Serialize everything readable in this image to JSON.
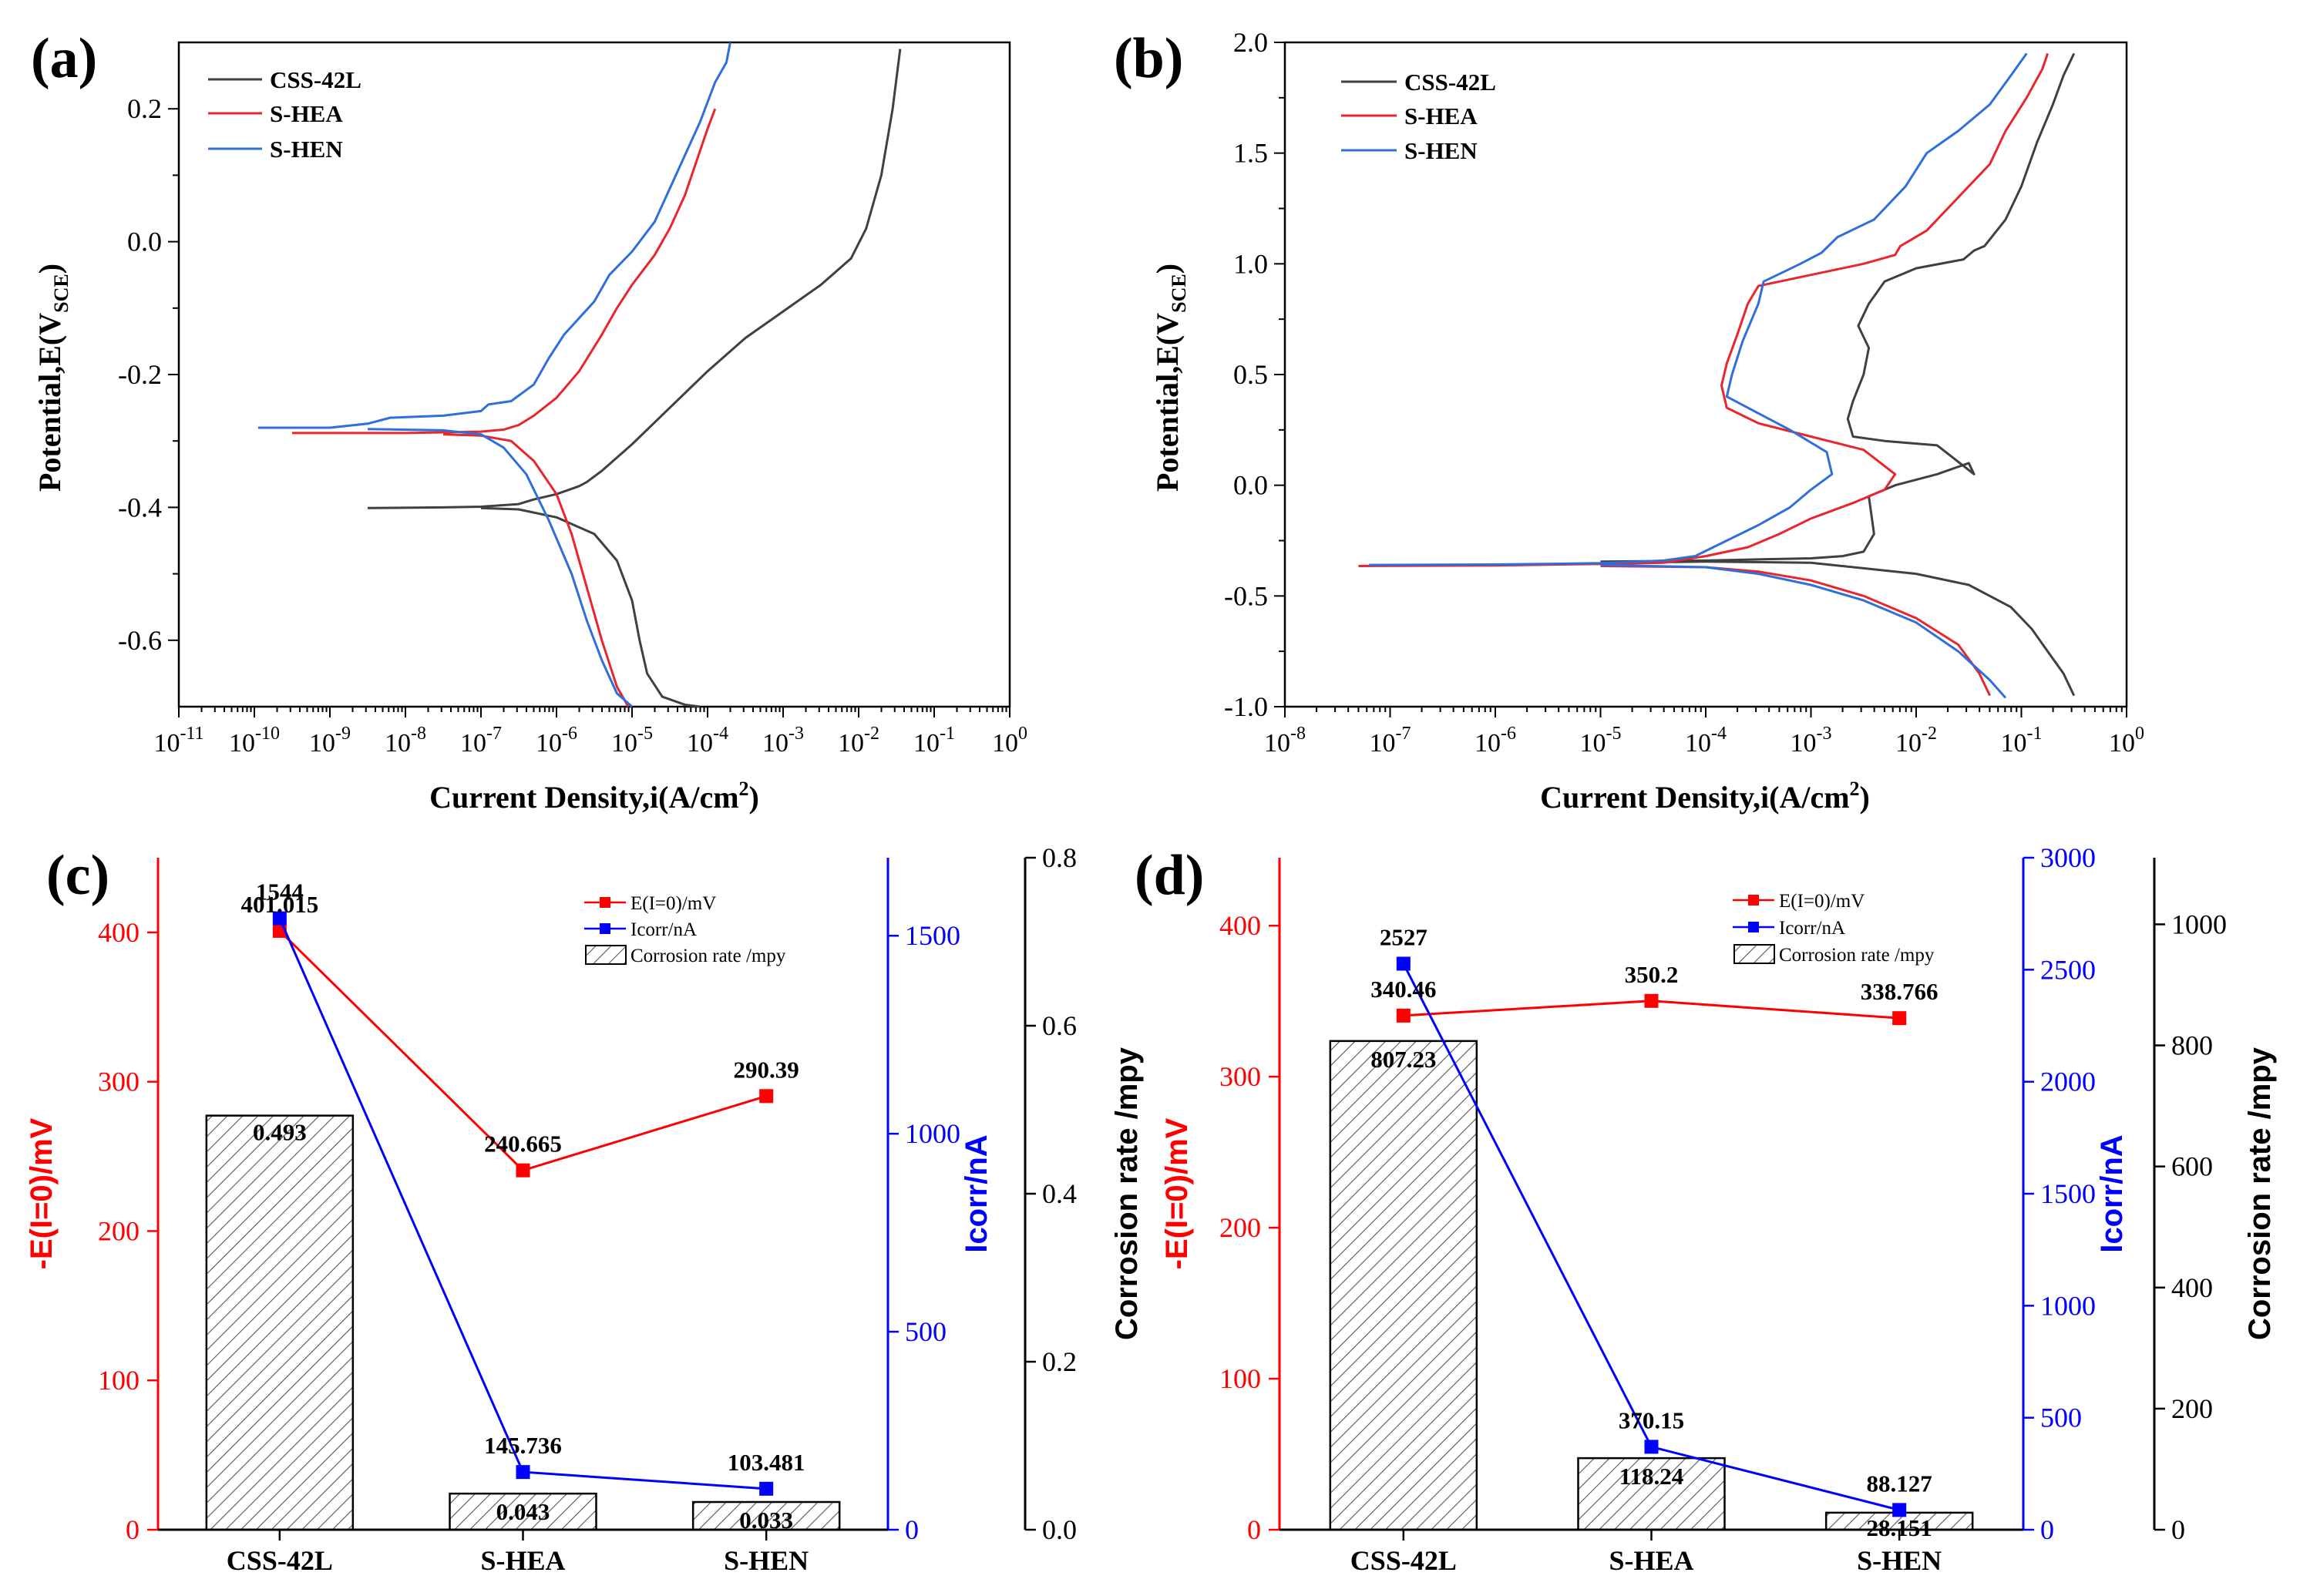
{
  "panels_letters": {
    "a": "(a)",
    "b": "(b)",
    "c": "(c)",
    "d": "(d)"
  },
  "colors": {
    "css": "#404040",
    "shea": "#e8262c",
    "shen": "#2f6fdc",
    "red_axis": "#ff0000",
    "blue_axis": "#0000ff"
  },
  "chart_data": [
    {
      "id": "a",
      "type": "line",
      "xscale": "log",
      "xlabel_main": "Current Density,i(A/cm",
      "xlabel_sup": "2",
      "xlabel_end": ")",
      "ylabel_main": "Potential,E(V",
      "ylabel_sub": "SCE",
      "ylabel_end": ")",
      "xlim_exp": [
        -11,
        0
      ],
      "ylim": [
        -0.7,
        0.3
      ],
      "xticks_exp": [
        -11,
        -10,
        -9,
        -8,
        -7,
        -6,
        -5,
        -4,
        -3,
        -2,
        -1,
        0
      ],
      "yticks": [
        -0.6,
        -0.4,
        -0.2,
        0.0,
        0.2
      ],
      "ytick_labels": [
        "-0.6",
        "-0.4",
        "-0.2",
        "0.0",
        "0.2"
      ],
      "legend": [
        "CSS-42L",
        "S-HEA",
        "S-HEN"
      ],
      "series": [
        {
          "name": "CSS-42L",
          "points_logi_E": [
            [
              -8.5,
              -0.401
            ],
            [
              -7.5,
              -0.4
            ],
            [
              -7,
              -0.399
            ],
            [
              -6.5,
              -0.395
            ],
            [
              -6.3,
              -0.388
            ],
            [
              -6.0,
              -0.38
            ],
            [
              -5.8,
              -0.372
            ],
            [
              -5.7,
              -0.368
            ],
            [
              -5.6,
              -0.362
            ],
            [
              -5.4,
              -0.345
            ],
            [
              -5.0,
              -0.305
            ],
            [
              -4.5,
              -0.25
            ],
            [
              -4.0,
              -0.195
            ],
            [
              -3.5,
              -0.145
            ],
            [
              -3.0,
              -0.105
            ],
            [
              -2.5,
              -0.065
            ],
            [
              -2.1,
              -0.025
            ],
            [
              -1.9,
              0.02
            ],
            [
              -1.7,
              0.1
            ],
            [
              -1.55,
              0.2
            ],
            [
              -1.45,
              0.29
            ],
            null,
            [
              -7,
              -0.401
            ],
            [
              -6.5,
              -0.403
            ],
            [
              -6,
              -0.415
            ],
            [
              -5.5,
              -0.44
            ],
            [
              -5.2,
              -0.48
            ],
            [
              -5.0,
              -0.54
            ],
            [
              -4.9,
              -0.6
            ],
            [
              -4.8,
              -0.65
            ],
            [
              -4.6,
              -0.685
            ],
            [
              -4.3,
              -0.697
            ],
            [
              -4.1,
              -0.7
            ]
          ]
        },
        {
          "name": "S-HEA",
          "points_logi_E": [
            [
              -9.5,
              -0.288
            ],
            [
              -8,
              -0.288
            ],
            [
              -7,
              -0.286
            ],
            [
              -6.7,
              -0.283
            ],
            [
              -6.5,
              -0.276
            ],
            [
              -6.3,
              -0.262
            ],
            [
              -6.0,
              -0.235
            ],
            [
              -5.7,
              -0.195
            ],
            [
              -5.4,
              -0.14
            ],
            [
              -5.2,
              -0.1
            ],
            [
              -5.0,
              -0.065
            ],
            [
              -4.7,
              -0.02
            ],
            [
              -4.5,
              0.02
            ],
            [
              -4.3,
              0.07
            ],
            [
              -4.15,
              0.12
            ],
            [
              -4.0,
              0.17
            ],
            [
              -3.9,
              0.2
            ],
            null,
            [
              -7.5,
              -0.29
            ],
            [
              -7,
              -0.292
            ],
            [
              -6.6,
              -0.3
            ],
            [
              -6.3,
              -0.33
            ],
            [
              -6.0,
              -0.38
            ],
            [
              -5.8,
              -0.44
            ],
            [
              -5.6,
              -0.52
            ],
            [
              -5.4,
              -0.6
            ],
            [
              -5.2,
              -0.67
            ],
            [
              -5.05,
              -0.7
            ]
          ]
        },
        {
          "name": "S-HEN",
          "points_logi_E": [
            [
              -9.95,
              -0.28
            ],
            [
              -9,
              -0.28
            ],
            [
              -8.5,
              -0.274
            ],
            [
              -8.2,
              -0.265
            ],
            [
              -7.5,
              -0.262
            ],
            [
              -7,
              -0.255
            ],
            [
              -6.9,
              -0.245
            ],
            [
              -6.6,
              -0.24
            ],
            [
              -6.3,
              -0.215
            ],
            [
              -6.1,
              -0.175
            ],
            [
              -5.9,
              -0.14
            ],
            [
              -5.5,
              -0.09
            ],
            [
              -5.3,
              -0.05
            ],
            [
              -5.0,
              -0.015
            ],
            [
              -4.7,
              0.03
            ],
            [
              -4.5,
              0.08
            ],
            [
              -4.3,
              0.13
            ],
            [
              -4.1,
              0.18
            ],
            [
              -3.9,
              0.24
            ],
            [
              -3.75,
              0.27
            ],
            [
              -3.7,
              0.3
            ],
            null,
            [
              -8.5,
              -0.282
            ],
            [
              -7.5,
              -0.284
            ],
            [
              -7,
              -0.29
            ],
            [
              -6.7,
              -0.31
            ],
            [
              -6.4,
              -0.35
            ],
            [
              -6.1,
              -0.42
            ],
            [
              -5.8,
              -0.5
            ],
            [
              -5.6,
              -0.57
            ],
            [
              -5.4,
              -0.63
            ],
            [
              -5.2,
              -0.68
            ],
            [
              -5.0,
              -0.7
            ]
          ]
        }
      ]
    },
    {
      "id": "b",
      "type": "line",
      "xscale": "log",
      "xlabel_main": "Current Density,i(A/cm",
      "xlabel_sup": "2",
      "xlabel_end": ")",
      "ylabel_main": "Potential,E(V",
      "ylabel_sub": "SCE",
      "ylabel_end": ")",
      "xlim_exp": [
        -8,
        0
      ],
      "ylim": [
        -1.0,
        2.0
      ],
      "xticks_exp": [
        -8,
        -7,
        -6,
        -5,
        -4,
        -3,
        -2,
        -1,
        0
      ],
      "yticks": [
        -1.0,
        -0.5,
        0.0,
        0.5,
        1.0,
        1.5,
        2.0
      ],
      "ytick_labels": [
        "-1.0",
        "-0.5",
        "0.0",
        "0.5",
        "1.0",
        "1.5",
        "2.0"
      ],
      "legend": [
        "CSS-42L",
        "S-HEA",
        "S-HEN"
      ],
      "series": [
        {
          "name": "CSS-42L",
          "points_logi_E": [
            [
              -5,
              -0.345
            ],
            [
              -4,
              -0.34
            ],
            [
              -3.5,
              -0.335
            ],
            [
              -3,
              -0.33
            ],
            [
              -2.7,
              -0.32
            ],
            [
              -2.5,
              -0.3
            ],
            [
              -2.4,
              -0.22
            ],
            [
              -2.45,
              -0.05
            ],
            [
              -2.2,
              0.0
            ],
            [
              -1.8,
              0.05
            ],
            [
              -1.5,
              0.1
            ],
            [
              -1.45,
              0.05
            ],
            [
              -1.8,
              0.18
            ],
            [
              -2.3,
              0.2
            ],
            [
              -2.6,
              0.22
            ],
            [
              -2.65,
              0.3
            ],
            [
              -2.6,
              0.38
            ],
            [
              -2.5,
              0.5
            ],
            [
              -2.45,
              0.62
            ],
            [
              -2.55,
              0.72
            ],
            [
              -2.45,
              0.82
            ],
            [
              -2.3,
              0.92
            ],
            [
              -2.0,
              0.98
            ],
            [
              -1.55,
              1.02
            ],
            [
              -1.45,
              1.06
            ],
            [
              -1.35,
              1.08
            ],
            [
              -1.15,
              1.2
            ],
            [
              -1.0,
              1.35
            ],
            [
              -0.85,
              1.55
            ],
            [
              -0.7,
              1.72
            ],
            [
              -0.6,
              1.85
            ],
            [
              -0.5,
              1.95
            ],
            null,
            [
              -5,
              -0.35
            ],
            [
              -4,
              -0.345
            ],
            [
              -3,
              -0.35
            ],
            [
              -2,
              -0.4
            ],
            [
              -1.5,
              -0.45
            ],
            [
              -1.1,
              -0.55
            ],
            [
              -0.9,
              -0.65
            ],
            [
              -0.75,
              -0.75
            ],
            [
              -0.6,
              -0.85
            ],
            [
              -0.5,
              -0.95
            ]
          ]
        },
        {
          "name": "S-HEA",
          "points_logi_E": [
            [
              -7.3,
              -0.365
            ],
            [
              -6,
              -0.362
            ],
            [
              -5,
              -0.355
            ],
            [
              -4.4,
              -0.35
            ],
            [
              -4.0,
              -0.32
            ],
            [
              -3.6,
              -0.28
            ],
            [
              -3.3,
              -0.22
            ],
            [
              -3.0,
              -0.15
            ],
            [
              -2.6,
              -0.08
            ],
            [
              -2.3,
              -0.02
            ],
            [
              -2.2,
              0.05
            ],
            [
              -2.5,
              0.16
            ],
            [
              -3.0,
              0.22
            ],
            [
              -3.5,
              0.28
            ],
            [
              -3.8,
              0.35
            ],
            [
              -3.85,
              0.45
            ],
            [
              -3.8,
              0.55
            ],
            [
              -3.7,
              0.68
            ],
            [
              -3.6,
              0.82
            ],
            [
              -3.5,
              0.9
            ],
            [
              -3.0,
              0.95
            ],
            [
              -2.5,
              1.0
            ],
            [
              -2.2,
              1.04
            ],
            [
              -2.15,
              1.08
            ],
            [
              -1.9,
              1.15
            ],
            [
              -1.6,
              1.3
            ],
            [
              -1.3,
              1.45
            ],
            [
              -1.15,
              1.6
            ],
            [
              -0.95,
              1.75
            ],
            [
              -0.8,
              1.88
            ],
            [
              -0.75,
              1.95
            ],
            null,
            [
              -5,
              -0.365
            ],
            [
              -4,
              -0.37
            ],
            [
              -3.5,
              -0.39
            ],
            [
              -3,
              -0.43
            ],
            [
              -2.5,
              -0.5
            ],
            [
              -2.0,
              -0.6
            ],
            [
              -1.6,
              -0.72
            ],
            [
              -1.4,
              -0.85
            ],
            [
              -1.3,
              -0.95
            ]
          ]
        },
        {
          "name": "S-HEN",
          "points_logi_E": [
            [
              -7.2,
              -0.36
            ],
            [
              -6,
              -0.358
            ],
            [
              -5,
              -0.352
            ],
            [
              -4.4,
              -0.34
            ],
            [
              -4.1,
              -0.32
            ],
            [
              -3.8,
              -0.25
            ],
            [
              -3.5,
              -0.18
            ],
            [
              -3.2,
              -0.1
            ],
            [
              -3.0,
              -0.02
            ],
            [
              -2.8,
              0.05
            ],
            [
              -2.85,
              0.15
            ],
            [
              -3.2,
              0.25
            ],
            [
              -3.6,
              0.35
            ],
            [
              -3.8,
              0.4
            ],
            [
              -3.75,
              0.5
            ],
            [
              -3.65,
              0.65
            ],
            [
              -3.5,
              0.82
            ],
            [
              -3.45,
              0.92
            ],
            [
              -3.1,
              1.0
            ],
            [
              -2.9,
              1.05
            ],
            [
              -2.75,
              1.12
            ],
            [
              -2.4,
              1.2
            ],
            [
              -2.1,
              1.35
            ],
            [
              -1.9,
              1.5
            ],
            [
              -1.6,
              1.6
            ],
            [
              -1.3,
              1.72
            ],
            [
              -1.1,
              1.85
            ],
            [
              -0.95,
              1.95
            ],
            null,
            [
              -5,
              -0.36
            ],
            [
              -4,
              -0.37
            ],
            [
              -3.5,
              -0.4
            ],
            [
              -3,
              -0.45
            ],
            [
              -2.5,
              -0.52
            ],
            [
              -2.0,
              -0.62
            ],
            [
              -1.6,
              -0.75
            ],
            [
              -1.3,
              -0.88
            ],
            [
              -1.15,
              -0.96
            ]
          ]
        }
      ]
    },
    {
      "id": "c",
      "type": "bar+line",
      "categories": [
        "CSS-42L",
        "S-HEA",
        "S-HEN"
      ],
      "left_axis": {
        "label": "-E(I=0)/mV",
        "ylim": [
          0,
          450
        ],
        "ticks": [
          0,
          100,
          200,
          300,
          400
        ]
      },
      "mid_axis": {
        "label": "Icorr/nA",
        "ylim": [
          0,
          1697
        ],
        "ticks": [
          0,
          500,
          1000,
          1500
        ]
      },
      "right_axis": {
        "label": "Corrosion rate /mpy",
        "ylim": [
          0,
          0.8
        ],
        "ticks": [
          "0.0",
          "0.2",
          "0.4",
          "0.6",
          "0.8"
        ]
      },
      "legend": [
        "E(I=0)/mV",
        "Icorr/nA",
        "Corrosion rate /mpy"
      ],
      "corrosion_rate": [
        0.493,
        0.043,
        0.033
      ],
      "corrosion_rate_labels": [
        "0.493",
        "0.043",
        "0.033"
      ],
      "E_I0": [
        401.015,
        240.665,
        290.39
      ],
      "E_I0_labels": [
        "401.015",
        "240.665",
        "290.39"
      ],
      "Icorr": [
        1544,
        145.736,
        103.481
      ],
      "Icorr_labels": [
        "1544",
        "145.736",
        "103.481"
      ]
    },
    {
      "id": "d",
      "type": "bar+line",
      "categories": [
        "CSS-42L",
        "S-HEA",
        "S-HEN"
      ],
      "left_axis": {
        "label": "-E(I=0)/mV",
        "ylim": [
          0,
          445
        ],
        "ticks": [
          0,
          100,
          200,
          300,
          400
        ]
      },
      "mid_axis": {
        "label": "Icorr/nA",
        "ylim": [
          0,
          3000
        ],
        "ticks": [
          0,
          500,
          1000,
          1500,
          2000,
          2500,
          3000
        ]
      },
      "right_axis": {
        "label": "Corrosion rate /mpy",
        "ylim": [
          0,
          1110
        ],
        "ticks": [
          0,
          200,
          400,
          600,
          800,
          1000
        ]
      },
      "legend": [
        "E(I=0)/mV",
        "Icorr/nA",
        "Corrosion rate /mpy"
      ],
      "corrosion_rate": [
        807.23,
        118.24,
        28.151
      ],
      "corrosion_rate_labels": [
        "807.23",
        "118.24",
        "28.151"
      ],
      "E_I0": [
        340.46,
        350.2,
        338.766
      ],
      "E_I0_labels": [
        "340.46",
        "350.2",
        "338.766"
      ],
      "Icorr": [
        2527,
        370.15,
        88.127
      ],
      "Icorr_labels": [
        "2527",
        "370.15",
        "88.127"
      ]
    }
  ]
}
